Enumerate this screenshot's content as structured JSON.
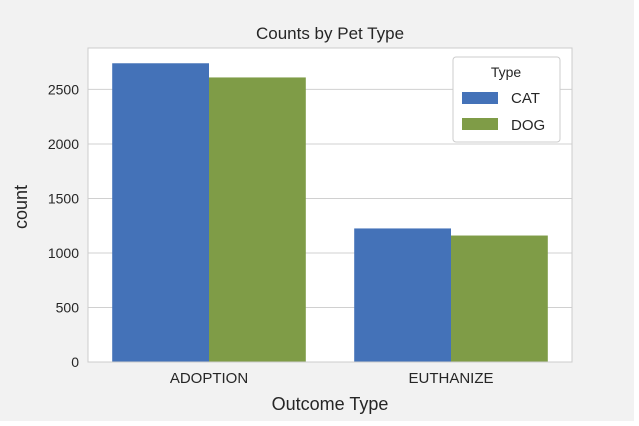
{
  "chart_data": {
    "type": "bar",
    "title": "Counts by Pet Type",
    "xlabel": "Outcome Type",
    "ylabel": "count",
    "categories": [
      "ADOPTION",
      "EUTHANIZE"
    ],
    "series": [
      {
        "name": "CAT",
        "values": [
          2740,
          1225
        ],
        "color": "#4472b8"
      },
      {
        "name": "DOG",
        "values": [
          2610,
          1160
        ],
        "color": "#7f9c47"
      }
    ],
    "ylim": [
      0,
      2880
    ],
    "yticks": [
      0,
      500,
      1000,
      1500,
      2000,
      2500
    ],
    "grid": true,
    "legend": {
      "title": "Type",
      "placement": "top-right"
    }
  },
  "colors": {
    "figure_background": "#f2f2f2",
    "plot_background": "#ffffff",
    "grid": "#d0d0d0"
  }
}
